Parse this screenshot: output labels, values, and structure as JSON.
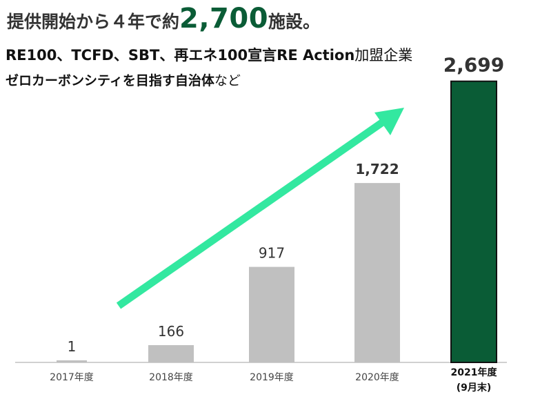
{
  "headline": {
    "prefix": "提供開始から４年で約",
    "big": "2,700",
    "suffix": "施設。"
  },
  "subtitle1": {
    "bold": "RE100、TCFD、SBT、再エネ100宣言RE Action",
    "normal": "加盟企業"
  },
  "subtitle2": {
    "bold": "ゼロカーボンシティを目指す自治体",
    "normal": "など"
  },
  "colors": {
    "bar": "#c0c0c0",
    "highlight": "#0a5c36",
    "arrow": "#33e8a0",
    "axis": "#c0c0c0"
  },
  "chart_data": {
    "type": "bar",
    "categories": [
      "2017年度",
      "2018年度",
      "2019年度",
      "2020年度",
      "2021年度"
    ],
    "category_notes": [
      "",
      "",
      "",
      "",
      "(9月末)"
    ],
    "values": [
      1,
      166,
      917,
      1722,
      2699
    ],
    "value_labels": [
      "1",
      "166",
      "917",
      "1,722",
      "2,699"
    ],
    "highlight_index": 4,
    "trend": "increasing-arrow",
    "ylim": [
      0,
      2800
    ]
  }
}
